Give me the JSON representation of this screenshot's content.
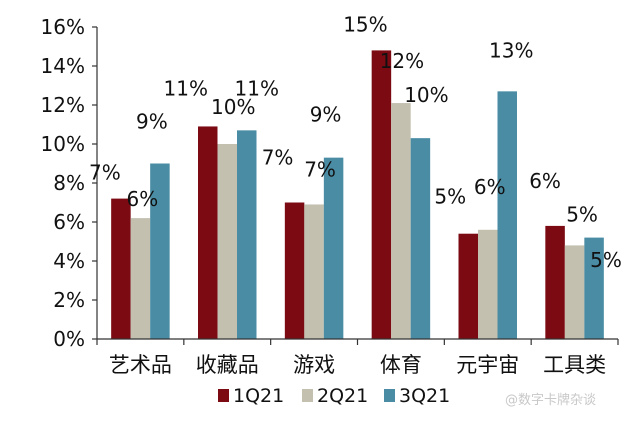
{
  "chart_data": {
    "type": "bar",
    "categories": [
      "艺术品",
      "收藏品",
      "游戏",
      "体育",
      "元宇宙",
      "工具类"
    ],
    "series": [
      {
        "name": "1Q21",
        "color": "#7b0a13",
        "values": [
          7.2,
          10.9,
          7.0,
          14.8,
          5.4,
          5.8
        ],
        "labels": [
          "7%",
          "11%",
          "7%",
          "15%",
          "5%",
          "6%"
        ]
      },
      {
        "name": "2Q21",
        "color": "#c3c0b0",
        "values": [
          6.2,
          10.0,
          6.9,
          12.1,
          5.6,
          4.8
        ],
        "labels": [
          "6%",
          "10%",
          "7%",
          "12%",
          "6%",
          ""
        ]
      },
      {
        "name": "3Q21",
        "color": "#4a8ca4",
        "values": [
          9.0,
          10.7,
          9.3,
          10.3,
          12.7,
          5.2
        ],
        "labels": [
          "9%",
          "11%",
          "9%",
          "10%",
          "13%",
          "5%"
        ]
      }
    ],
    "extra_labels": [
      "5%"
    ],
    "yticks": [
      "0%",
      "2%",
      "4%",
      "6%",
      "8%",
      "10%",
      "12%",
      "14%",
      "16%"
    ],
    "ylim": [
      0,
      16
    ],
    "grid": false,
    "legend": "bottom"
  },
  "watermark": "@数字卡牌杂谈"
}
